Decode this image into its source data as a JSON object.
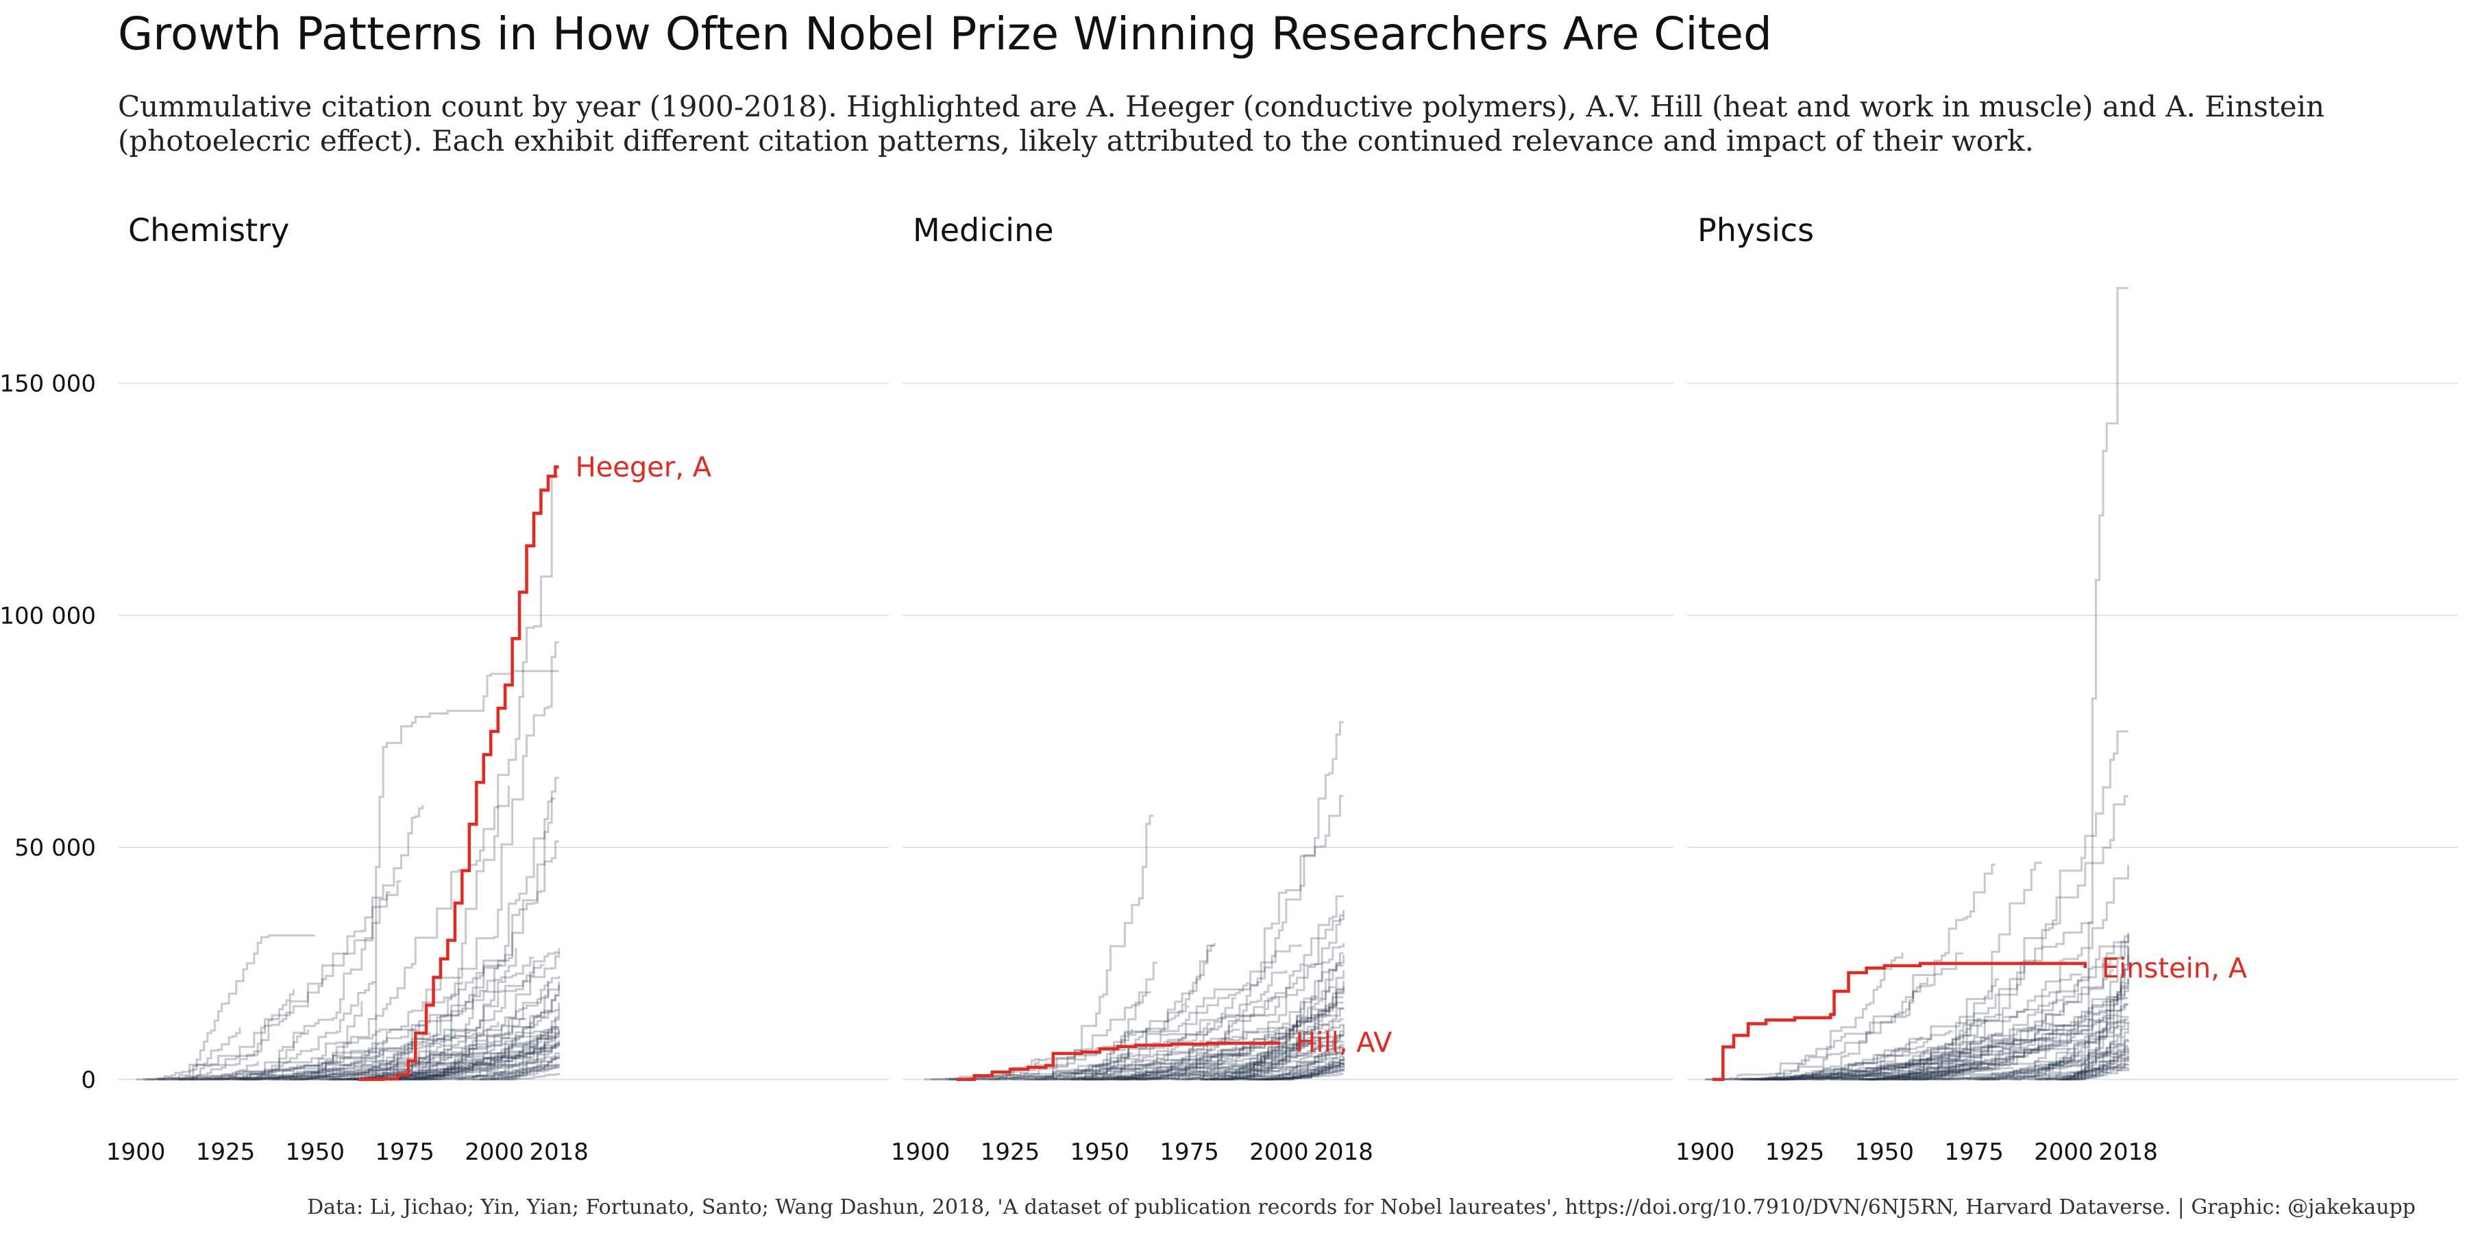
{
  "title": "Growth Patterns in How Often Nobel Prize Winning Researchers Are Cited",
  "subtitle_lines": [
    "Cummulative citation count by year (1900-2018). Highlighted are A. Heeger (conductive polymers), A.V. Hill (heat and work in muscle) and A. Einstein",
    "(photoelecric effect). Each exhibit different citation patterns, likely attributed to the continued relevance and impact of their work."
  ],
  "caption": "Data: Li, Jichao; Yin, Yian; Fortunato, Santo; Wang Dashun, 2018, 'A dataset of publication records for Nobel laureates', https://doi.org/10.7910/DVN/6NJ5RN, Harvard Dataverse. | Graphic: @jakekaupp",
  "colors": {
    "highlight": "#e8281e",
    "background_lines": "#22324a",
    "grid": "#e3e3e3"
  },
  "chart_data": {
    "type": "line",
    "step": true,
    "facets": [
      "Chemistry",
      "Medicine",
      "Physics"
    ],
    "x_ticks": [
      1900,
      1925,
      1950,
      1975,
      2000,
      2018
    ],
    "y_ticks": [
      0,
      50000,
      100000,
      150000
    ],
    "y_tick_labels": [
      "0",
      "50 000",
      "100 000",
      "150 000"
    ],
    "xlim": [
      1895,
      2110
    ],
    "ylim": [
      -8000,
      178000
    ],
    "grid": "horizontal",
    "highlighted": [
      {
        "facet": "Chemistry",
        "name": "Heeger, A",
        "points": [
          [
            1962,
            0
          ],
          [
            1969,
            100
          ],
          [
            1973,
            1000
          ],
          [
            1976,
            4000
          ],
          [
            1978,
            10000
          ],
          [
            1981,
            16000
          ],
          [
            1983,
            22000
          ],
          [
            1985,
            26000
          ],
          [
            1987,
            30000
          ],
          [
            1989,
            38000
          ],
          [
            1991,
            45000
          ],
          [
            1993,
            55000
          ],
          [
            1995,
            64000
          ],
          [
            1997,
            70000
          ],
          [
            1999,
            75000
          ],
          [
            2001,
            80000
          ],
          [
            2003,
            85000
          ],
          [
            2005,
            95000
          ],
          [
            2007,
            105000
          ],
          [
            2009,
            115000
          ],
          [
            2011,
            122000
          ],
          [
            2013,
            127000
          ],
          [
            2015,
            130000
          ],
          [
            2017,
            132000
          ],
          [
            2018,
            132000
          ]
        ]
      },
      {
        "facet": "Medicine",
        "name": "Hill, AV",
        "points": [
          [
            1910,
            0
          ],
          [
            1915,
            800
          ],
          [
            1920,
            1600
          ],
          [
            1925,
            2200
          ],
          [
            1930,
            2600
          ],
          [
            1935,
            3000
          ],
          [
            1937,
            5600
          ],
          [
            1945,
            5900
          ],
          [
            1950,
            6600
          ],
          [
            1955,
            7100
          ],
          [
            1960,
            7400
          ],
          [
            1970,
            7600
          ],
          [
            1980,
            7800
          ],
          [
            2000,
            8000
          ]
        ]
      },
      {
        "facet": "Physics",
        "name": "Einstein, A",
        "points": [
          [
            1902,
            0
          ],
          [
            1905,
            7000
          ],
          [
            1908,
            9500
          ],
          [
            1912,
            12000
          ],
          [
            1917,
            12800
          ],
          [
            1925,
            13300
          ],
          [
            1935,
            14000
          ],
          [
            1936,
            19000
          ],
          [
            1940,
            23000
          ],
          [
            1945,
            24000
          ],
          [
            1950,
            24500
          ],
          [
            1960,
            25000
          ],
          [
            1980,
            25000
          ],
          [
            2005,
            25000
          ],
          [
            2006,
            24000
          ]
        ]
      }
    ],
    "background_series_count": {
      "Chemistry": 70,
      "Medicine": 70,
      "Physics": 70
    },
    "notable_background": {
      "Chemistry": [
        {
          "start": 1915,
          "end": 1950,
          "final": 31000,
          "shape": "early"
        },
        {
          "start": 1965,
          "end": 2018,
          "final": 130000,
          "shape": "mid"
        },
        {
          "start": 1966,
          "end": 2018,
          "final": 88000,
          "shape": "jump"
        },
        {
          "start": 1970,
          "end": 2018,
          "final": 97000,
          "shape": "mid"
        }
      ],
      "Medicine": [
        {
          "start": 1960,
          "end": 2018,
          "final": 77000,
          "shape": "late"
        },
        {
          "start": 1950,
          "end": 2018,
          "final": 30000,
          "shape": "mid"
        }
      ],
      "Physics": [
        {
          "start": 1955,
          "end": 2018,
          "final": 80000,
          "shape": "mid"
        },
        {
          "start": 2005,
          "end": 2018,
          "final": 174000,
          "shape": "spike"
        },
        {
          "start": 1960,
          "end": 2018,
          "final": 47000,
          "shape": "mid"
        }
      ]
    }
  }
}
